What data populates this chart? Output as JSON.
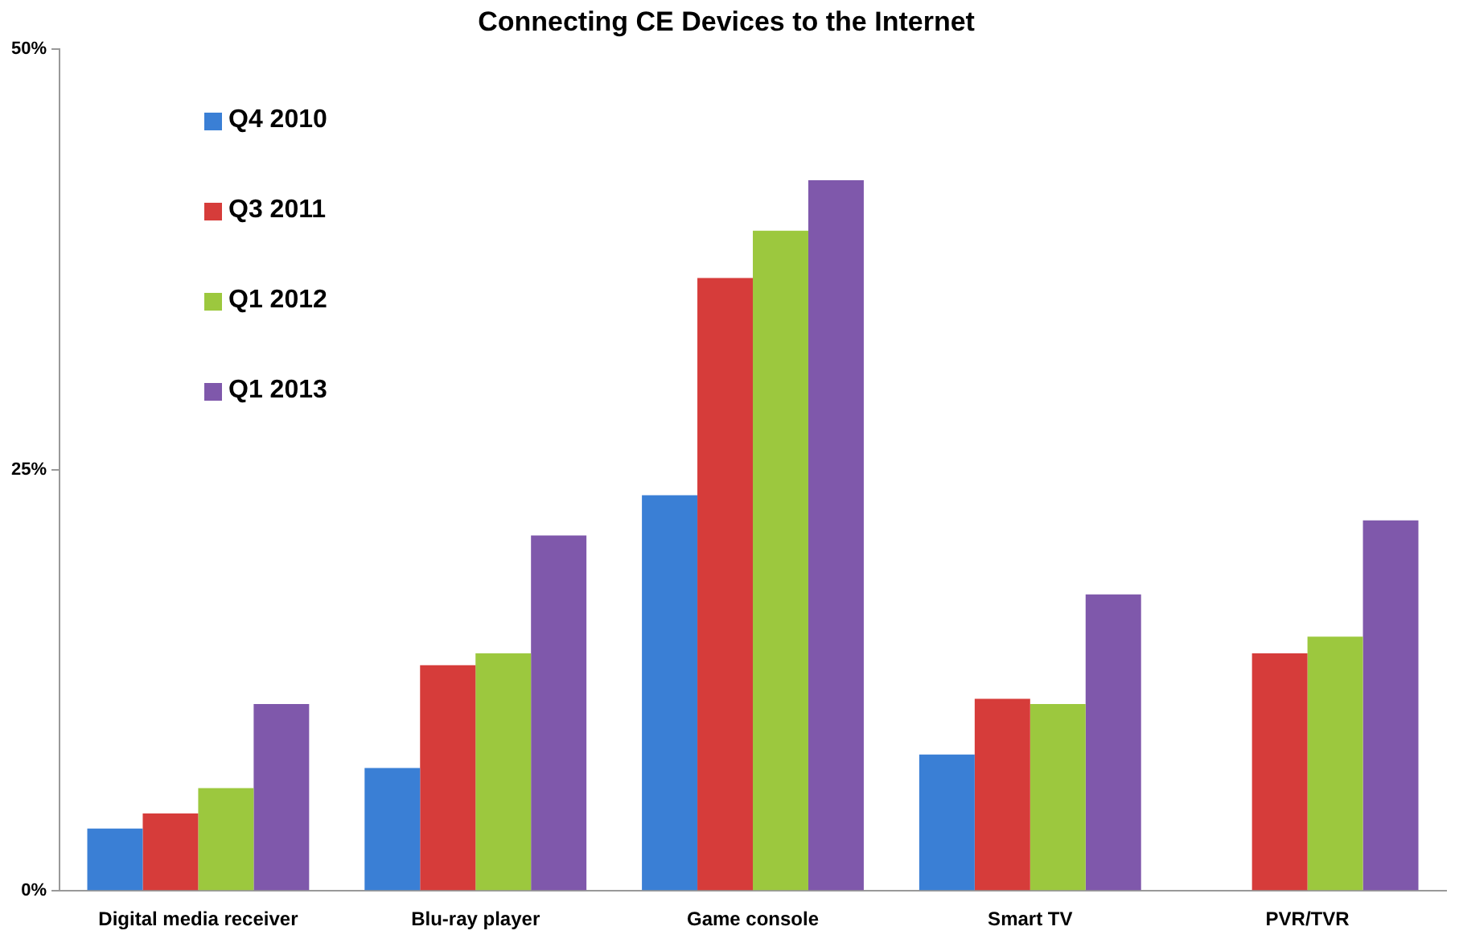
{
  "chart_data": {
    "type": "bar",
    "title": "Connecting CE Devices to the Internet",
    "categories": [
      "Digital media receiver",
      "Blu-ray player",
      "Game console",
      "Smart TV",
      "PVR/TVR"
    ],
    "series": [
      {
        "name": "Q4 2010",
        "color": "#3a7fd5",
        "values": [
          3.7,
          7.3,
          23.5,
          8.1,
          null
        ]
      },
      {
        "name": "Q3 2011",
        "color": "#d63c3a",
        "values": [
          4.6,
          13.4,
          36.4,
          11.4,
          14.1
        ]
      },
      {
        "name": "Q1 2012",
        "color": "#9cc83e",
        "values": [
          6.1,
          14.1,
          39.2,
          11.1,
          15.1
        ]
      },
      {
        "name": "Q1 2013",
        "color": "#7f58ab",
        "values": [
          11.1,
          21.1,
          42.2,
          17.6,
          22.0
        ]
      }
    ],
    "ylim": [
      0,
      50
    ],
    "yticks": [
      {
        "value": 0,
        "label": "0%"
      },
      {
        "value": 25,
        "label": "25%"
      },
      {
        "value": 50,
        "label": "50%"
      }
    ],
    "grid": false,
    "legend": "top left"
  }
}
